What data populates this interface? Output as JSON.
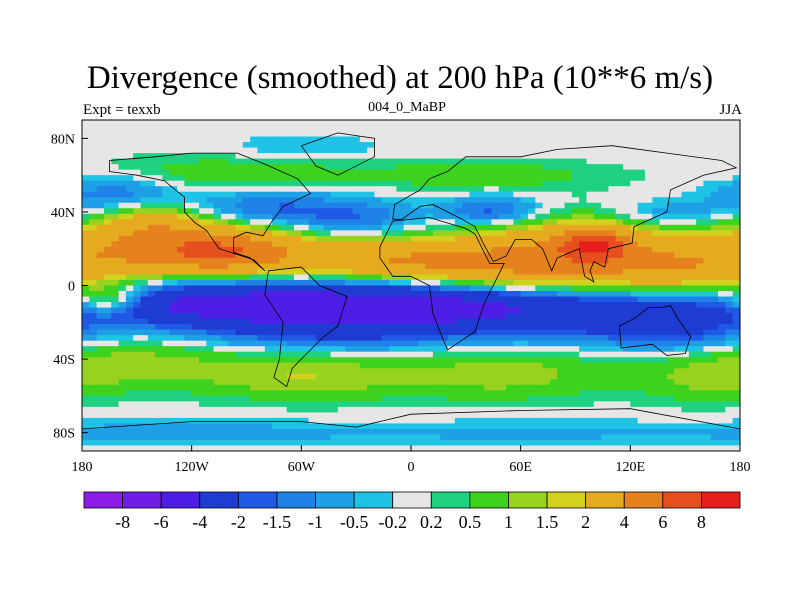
{
  "chart_data": {
    "type": "heatmap",
    "title": "Divergence (smoothed) at 200 hPa (10**6 m/s)",
    "left_label": "Expt = texxb",
    "center_label": "004_0_MaBP",
    "right_label": "JJA",
    "xlim": [
      -180,
      180
    ],
    "ylim": [
      -90,
      90
    ],
    "x_ticks": [
      {
        "value": -180,
        "label": "180"
      },
      {
        "value": -120,
        "label": "120W"
      },
      {
        "value": -60,
        "label": "60W"
      },
      {
        "value": 0,
        "label": "0"
      },
      {
        "value": 60,
        "label": "60E"
      },
      {
        "value": 120,
        "label": "120E"
      },
      {
        "value": 180,
        "label": "180"
      }
    ],
    "y_ticks": [
      {
        "value": 80,
        "label": "80N"
      },
      {
        "value": 40,
        "label": "40N"
      },
      {
        "value": 0,
        "label": "0"
      },
      {
        "value": -40,
        "label": "40S"
      },
      {
        "value": -80,
        "label": "80S"
      }
    ],
    "colorbar": {
      "colors": [
        "#8c1ee8",
        "#6e1ee6",
        "#4c1ee6",
        "#1e3cd2",
        "#1e5ae6",
        "#1e82e6",
        "#1ea0e6",
        "#1ec3e6",
        "#e6e6e6",
        "#1ed282",
        "#3cd21e",
        "#96d21e",
        "#d2d21e",
        "#e6aa1e",
        "#e6821e",
        "#e6501e",
        "#e61e1e"
      ],
      "labels": [
        "-8",
        "-6",
        "-4",
        "-2",
        "-1.5",
        "-1",
        "-0.5",
        "-0.2",
        "0.2",
        "0.5",
        "1",
        "1.5",
        "2",
        "4",
        "6",
        "8"
      ]
    },
    "fields": [
      {
        "lon": -130,
        "lat": 20,
        "wlon": 45,
        "wlat": 10,
        "amp": 4.5
      },
      {
        "lon": -100,
        "lat": 18,
        "wlon": 25,
        "wlat": 8,
        "amp": 2.5
      },
      {
        "lon": -30,
        "lat": 15,
        "wlon": 40,
        "wlat": 9,
        "amp": 2.0
      },
      {
        "lon": 10,
        "lat": 12,
        "wlon": 40,
        "wlat": 8,
        "amp": 2.2
      },
      {
        "lon": 90,
        "lat": 20,
        "wlon": 45,
        "wlat": 12,
        "amp": 3.5
      },
      {
        "lon": 100,
        "lat": 22,
        "wlon": 12,
        "wlat": 6,
        "amp": 5.0
      },
      {
        "lon": 150,
        "lat": 8,
        "wlon": 35,
        "wlat": 9,
        "amp": 2.5
      },
      {
        "lon": 60,
        "lat": 5,
        "wlon": 40,
        "wlat": 10,
        "amp": 2.0
      },
      {
        "lon": -140,
        "lat": 35,
        "wlon": 18,
        "wlat": 7,
        "amp": 2.0
      },
      {
        "lon": -165,
        "lat": -8,
        "wlon": 15,
        "wlat": 6,
        "amp": 3.0
      },
      {
        "lon": -120,
        "lat": -10,
        "wlon": 60,
        "wlat": 8,
        "amp": -3.5
      },
      {
        "lon": -40,
        "lat": -15,
        "wlon": 55,
        "wlat": 12,
        "amp": -4.0
      },
      {
        "lon": 30,
        "lat": -10,
        "wlon": 40,
        "wlat": 9,
        "amp": -3.0
      },
      {
        "lon": 100,
        "lat": -15,
        "wlon": 40,
        "wlat": 10,
        "amp": -2.5
      },
      {
        "lon": 150,
        "lat": -25,
        "wlon": 30,
        "wlat": 8,
        "amp": -1.5
      },
      {
        "lon": -160,
        "lat": 50,
        "wlon": 25,
        "wlat": 7,
        "amp": -1.5
      },
      {
        "lon": -80,
        "lat": 42,
        "wlon": 30,
        "wlat": 8,
        "amp": -1.6
      },
      {
        "lon": -30,
        "lat": 35,
        "wlon": 25,
        "wlat": 8,
        "amp": -1.5
      },
      {
        "lon": 45,
        "lat": 40,
        "wlon": 20,
        "wlat": 6,
        "amp": -2.0
      },
      {
        "lon": 140,
        "lat": 38,
        "wlon": 25,
        "wlat": 6,
        "amp": -1.2
      },
      {
        "lon": -150,
        "lat": -42,
        "wlon": 35,
        "wlat": 10,
        "amp": 1.2
      },
      {
        "lon": -60,
        "lat": -48,
        "wlon": 40,
        "wlat": 10,
        "amp": 1.5
      },
      {
        "lon": 50,
        "lat": -48,
        "wlon": 45,
        "wlat": 10,
        "amp": 1.3
      },
      {
        "lon": 160,
        "lat": -50,
        "wlon": 25,
        "wlat": 10,
        "amp": 1.0
      },
      {
        "lon": -100,
        "lat": 60,
        "wlon": 50,
        "wlat": 8,
        "amp": 0.9
      },
      {
        "lon": 40,
        "lat": 60,
        "wlon": 50,
        "wlat": 6,
        "amp": 0.8
      },
      {
        "lon": -120,
        "lat": -80,
        "wlon": 60,
        "wlat": 5,
        "amp": -0.7
      },
      {
        "lon": 60,
        "lat": -80,
        "wlon": 80,
        "wlat": 5,
        "amp": -0.6
      },
      {
        "lon": -60,
        "lat": 75,
        "wlon": 30,
        "wlat": 5,
        "amp": -0.6
      }
    ]
  }
}
